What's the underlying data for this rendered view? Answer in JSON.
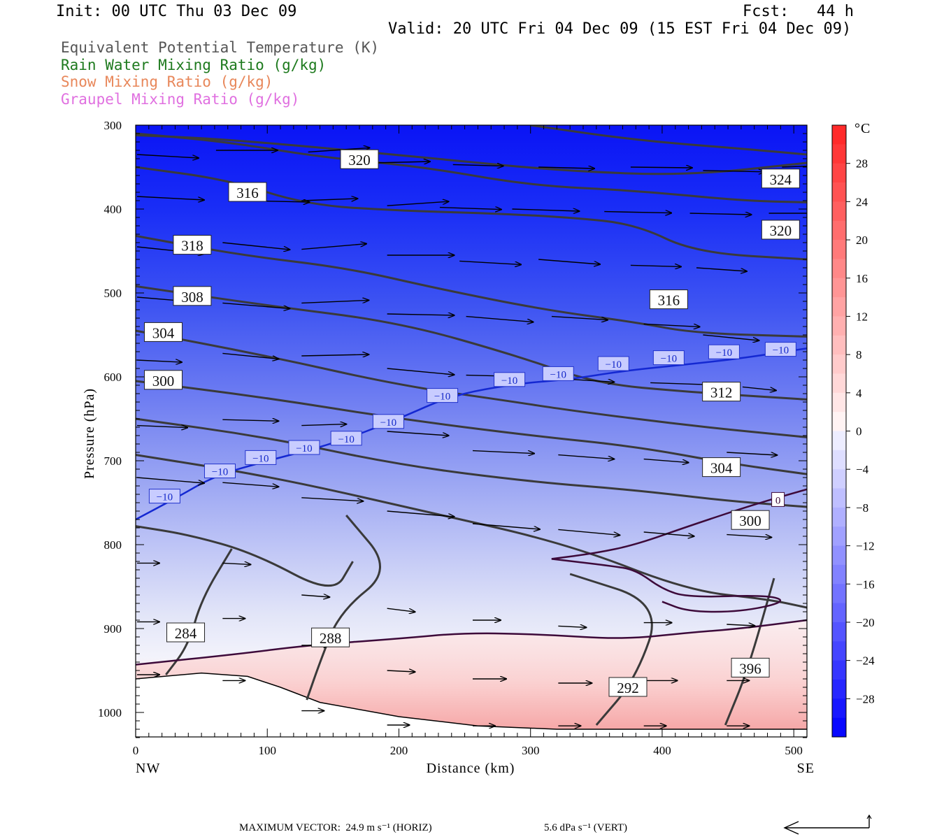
{
  "header": {
    "init": "Init: 00 UTC Thu 03 Dec 09",
    "fcst": "Fcst:   44 h",
    "valid": "Valid: 20 UTC Fri 04 Dec 09 (15 EST Fri 04 Dec 09)"
  },
  "legend": [
    {
      "text": "Equivalent Potential Temperature (K)",
      "color": "#555555"
    },
    {
      "text": "Rain Water Mixing Ratio (g/kg)",
      "color": "#1e7a1e"
    },
    {
      "text": "Snow Mixing Ratio (g/kg)",
      "color": "#e8875a"
    },
    {
      "text": "Graupel Mixing Ratio (g/kg)",
      "color": "#e070e0"
    }
  ],
  "chart_data": {
    "type": "cross-section",
    "xlabel": "Distance (km)",
    "ylabel": "Pressure (hPa)",
    "x_range": [
      0,
      510
    ],
    "y_range": [
      1030,
      300
    ],
    "x_ticks": [
      "0",
      "100",
      "200",
      "300",
      "400",
      "500"
    ],
    "y_ticks": [
      "300",
      "400",
      "500",
      "600",
      "700",
      "800",
      "900",
      "1000"
    ],
    "x_left_label": "NW",
    "x_right_label": "SE",
    "colorbar": {
      "unit": "°C",
      "labels": [
        "28",
        "24",
        "20",
        "16",
        "12",
        "8",
        "4",
        "0",
        "−4",
        "−8",
        "−12",
        "−16",
        "−20",
        "−24",
        "−28"
      ],
      "min": -32,
      "max": 32
    },
    "theta_e_contours": [
      {
        "label": "284",
        "points": [
          [
            23,
            955
          ],
          [
            40,
            920
          ],
          [
            50,
            865
          ],
          [
            73,
            805
          ]
        ]
      },
      {
        "label": "288",
        "points": [
          [
            130,
            985
          ],
          [
            140,
            940
          ],
          [
            155,
            880
          ],
          [
            195,
            830
          ],
          [
            160,
            765
          ]
        ]
      },
      {
        "label": "292",
        "points": [
          [
            350,
            1015
          ],
          [
            380,
            960
          ],
          [
            400,
            870
          ],
          [
            330,
            835
          ]
        ]
      },
      {
        "label": "396",
        "points": [
          [
            448,
            1015
          ],
          [
            465,
            950
          ],
          [
            485,
            840
          ]
        ]
      },
      {
        "label": "300",
        "points": [
          [
            0,
            778
          ],
          [
            40,
            788
          ],
          [
            90,
            810
          ],
          [
            150,
            860
          ],
          [
            165,
            820
          ]
        ]
      },
      {
        "label": "304",
        "points": [
          [
            0,
            693
          ],
          [
            100,
            718
          ],
          [
            220,
            760
          ],
          [
            330,
            800
          ],
          [
            420,
            855
          ],
          [
            480,
            865
          ],
          [
            510,
            875
          ]
        ]
      },
      {
        "label": "300",
        "points": [
          [
            0,
            650
          ],
          [
            100,
            672
          ],
          [
            200,
            705
          ],
          [
            300,
            725
          ],
          [
            380,
            735
          ],
          [
            450,
            748
          ],
          [
            510,
            755
          ]
        ]
      },
      {
        "label": "304",
        "points": [
          [
            0,
            605
          ],
          [
            100,
            625
          ],
          [
            200,
            650
          ],
          [
            300,
            670
          ],
          [
            380,
            683
          ],
          [
            450,
            703
          ],
          [
            510,
            716
          ]
        ]
      },
      {
        "label": "312",
        "points": [
          [
            0,
            545
          ],
          [
            100,
            575
          ],
          [
            200,
            610
          ],
          [
            280,
            628
          ],
          [
            330,
            640
          ],
          [
            420,
            658
          ],
          [
            510,
            672
          ]
        ]
      },
      {
        "label": "308",
        "points": [
          [
            0,
            492
          ],
          [
            100,
            515
          ],
          [
            200,
            535
          ],
          [
            290,
            575
          ],
          [
            350,
            608
          ],
          [
            420,
            618
          ],
          [
            510,
            627
          ]
        ]
      },
      {
        "label": "316",
        "points": [
          [
            0,
            432
          ],
          [
            80,
            455
          ],
          [
            160,
            470
          ],
          [
            230,
            495
          ],
          [
            310,
            520
          ],
          [
            380,
            535
          ],
          [
            425,
            548
          ],
          [
            510,
            552
          ]
        ]
      },
      {
        "label": "318",
        "points": [
          [
            0,
            350
          ],
          [
            70,
            365
          ],
          [
            130,
            395
          ],
          [
            200,
            402
          ],
          [
            270,
            405
          ],
          [
            330,
            410
          ],
          [
            380,
            418
          ],
          [
            425,
            452
          ],
          [
            510,
            460
          ]
        ]
      },
      {
        "label": "316",
        "points": [
          [
            0,
            310
          ],
          [
            70,
            320
          ],
          [
            140,
            338
          ],
          [
            220,
            350
          ],
          [
            300,
            372
          ],
          [
            380,
            378
          ],
          [
            460,
            390
          ],
          [
            510,
            392
          ]
        ]
      },
      {
        "label": "320",
        "points": [
          [
            0,
            312
          ],
          [
            60,
            316
          ],
          [
            150,
            328
          ],
          [
            240,
            342
          ],
          [
            330,
            355
          ],
          [
            420,
            360
          ],
          [
            510,
            345
          ]
        ]
      },
      {
        "label": "324",
        "points": [
          [
            300,
            300
          ],
          [
            380,
            318
          ],
          [
            460,
            328
          ],
          [
            510,
            335
          ]
        ]
      }
    ],
    "contour_labels": [
      {
        "text": "320",
        "x": 170,
        "p": 341
      },
      {
        "text": "324",
        "x": 490,
        "p": 364
      },
      {
        "text": "316",
        "x": 85,
        "p": 380
      },
      {
        "text": "320",
        "x": 490,
        "p": 425
      },
      {
        "text": "318",
        "x": 43,
        "p": 443
      },
      {
        "text": "308",
        "x": 43,
        "p": 504
      },
      {
        "text": "316",
        "x": 405,
        "p": 508
      },
      {
        "text": "304",
        "x": 21,
        "p": 547
      },
      {
        "text": "300",
        "x": 21,
        "p": 604
      },
      {
        "text": "312",
        "x": 445,
        "p": 618
      },
      {
        "text": "304",
        "x": 445,
        "p": 708
      },
      {
        "text": "300",
        "x": 467,
        "p": 771
      },
      {
        "text": "284",
        "x": 38,
        "p": 905
      },
      {
        "text": "288",
        "x": 148,
        "p": 911
      },
      {
        "text": "292",
        "x": 374,
        "p": 970
      },
      {
        "text": "396",
        "x": 467,
        "p": 947
      }
    ],
    "isotherm_minus10": {
      "label": "−10",
      "points": [
        [
          0,
          770
        ],
        [
          30,
          745
        ],
        [
          60,
          718
        ],
        [
          100,
          700
        ],
        [
          150,
          680
        ],
        [
          200,
          650
        ],
        [
          240,
          622
        ],
        [
          290,
          608
        ],
        [
          330,
          603
        ],
        [
          370,
          593
        ],
        [
          420,
          585
        ],
        [
          460,
          578
        ],
        [
          510,
          566
        ]
      ],
      "label_positions": [
        [
          22,
          743
        ],
        [
          64,
          713
        ],
        [
          95,
          697
        ],
        [
          128,
          685
        ],
        [
          160,
          674
        ],
        [
          192,
          654
        ],
        [
          233,
          623
        ],
        [
          284,
          604
        ],
        [
          321,
          597
        ],
        [
          363,
          585
        ],
        [
          405,
          578
        ],
        [
          447,
          571
        ],
        [
          490,
          568
        ]
      ]
    },
    "zero_isotherm": {
      "label": "0",
      "points": [
        [
          0,
          943
        ],
        [
          80,
          930
        ],
        [
          130,
          920
        ],
        [
          200,
          912
        ],
        [
          250,
          905
        ],
        [
          310,
          907
        ],
        [
          370,
          913
        ],
        [
          420,
          905
        ],
        [
          460,
          900
        ],
        [
          510,
          890
        ]
      ],
      "lens": [
        [
          316,
          817
        ],
        [
          350,
          810
        ],
        [
          380,
          800
        ],
        [
          420,
          778
        ],
        [
          470,
          752
        ],
        [
          510,
          734
        ]
      ],
      "lens_lower": [
        [
          316,
          817
        ],
        [
          360,
          825
        ],
        [
          380,
          830
        ],
        [
          400,
          853
        ],
        [
          420,
          863
        ],
        [
          480,
          860
        ],
        [
          495,
          868
        ],
        [
          460,
          880
        ],
        [
          420,
          880
        ],
        [
          400,
          868
        ]
      ],
      "label_pos": [
        488,
        747
      ]
    },
    "terrain": [
      [
        0,
        960
      ],
      [
        50,
        953
      ],
      [
        85,
        957
      ],
      [
        110,
        970
      ],
      [
        140,
        988
      ],
      [
        200,
        1005
      ],
      [
        260,
        1016
      ],
      [
        320,
        1020
      ],
      [
        400,
        1020
      ],
      [
        510,
        1020
      ]
    ],
    "wind_vectors": [
      [
        0,
        335,
        55,
        5
      ],
      [
        60,
        330,
        55,
        0
      ],
      [
        130,
        332,
        55,
        -6
      ],
      [
        180,
        345,
        50,
        -2
      ],
      [
        240,
        347,
        45,
        2
      ],
      [
        305,
        350,
        50,
        2
      ],
      [
        375,
        350,
        55,
        1
      ],
      [
        430,
        354,
        55,
        2
      ],
      [
        490,
        350,
        50,
        -3
      ],
      [
        0,
        385,
        60,
        5
      ],
      [
        80,
        390,
        60,
        2
      ],
      [
        125,
        390,
        50,
        -3
      ],
      [
        190,
        396,
        55,
        -6
      ],
      [
        230,
        398,
        55,
        3
      ],
      [
        285,
        400,
        60,
        3
      ],
      [
        355,
        403,
        60,
        2
      ],
      [
        420,
        405,
        55,
        2
      ],
      [
        480,
        405,
        50,
        0
      ],
      [
        0,
        445,
        60,
        10
      ],
      [
        65,
        440,
        60,
        10
      ],
      [
        125,
        448,
        58,
        -8
      ],
      [
        190,
        455,
        60,
        0
      ],
      [
        245,
        462,
        55,
        5
      ],
      [
        305,
        460,
        55,
        7
      ],
      [
        375,
        467,
        45,
        2
      ],
      [
        425,
        470,
        45,
        5
      ],
      [
        0,
        505,
        60,
        8
      ],
      [
        65,
        512,
        60,
        8
      ],
      [
        125,
        512,
        60,
        -4
      ],
      [
        190,
        525,
        60,
        2
      ],
      [
        250,
        528,
        60,
        8
      ],
      [
        315,
        528,
        50,
        5
      ],
      [
        385,
        537,
        50,
        4
      ],
      [
        430,
        550,
        50,
        8
      ],
      [
        0,
        580,
        40,
        3
      ],
      [
        65,
        572,
        50,
        8
      ],
      [
        125,
        575,
        60,
        -2
      ],
      [
        190,
        590,
        60,
        9
      ],
      [
        250,
        598,
        50,
        2
      ],
      [
        320,
        602,
        50,
        5
      ],
      [
        390,
        607,
        55,
        3
      ],
      [
        460,
        612,
        30,
        5
      ],
      [
        0,
        658,
        45,
        3
      ],
      [
        65,
        651,
        50,
        2
      ],
      [
        125,
        658,
        40,
        -2
      ],
      [
        190,
        665,
        55,
        6
      ],
      [
        255,
        688,
        55,
        4
      ],
      [
        320,
        693,
        50,
        6
      ],
      [
        385,
        698,
        40,
        5
      ],
      [
        448,
        690,
        45,
        4
      ],
      [
        0,
        720,
        60,
        8
      ],
      [
        65,
        726,
        50,
        6
      ],
      [
        125,
        744,
        55,
        5
      ],
      [
        190,
        760,
        60,
        8
      ],
      [
        255,
        775,
        60,
        8
      ],
      [
        320,
        782,
        55,
        8
      ],
      [
        385,
        785,
        45,
        6
      ],
      [
        448,
        788,
        40,
        4
      ],
      [
        0,
        822,
        20,
        0
      ],
      [
        65,
        822,
        25,
        2
      ],
      [
        125,
        860,
        25,
        3
      ],
      [
        190,
        876,
        25,
        5
      ],
      [
        255,
        890,
        25,
        0
      ],
      [
        320,
        897,
        25,
        2
      ],
      [
        385,
        893,
        25,
        0
      ],
      [
        448,
        895,
        25,
        2
      ],
      [
        0,
        892,
        20,
        0
      ],
      [
        65,
        888,
        20,
        0
      ],
      [
        125,
        920,
        25,
        0
      ],
      [
        190,
        950,
        25,
        2
      ],
      [
        255,
        960,
        30,
        0
      ],
      [
        320,
        965,
        30,
        0
      ],
      [
        385,
        962,
        30,
        0
      ],
      [
        448,
        962,
        20,
        0
      ],
      [
        0,
        955,
        20,
        0
      ],
      [
        65,
        962,
        20,
        0
      ],
      [
        125,
        998,
        20,
        0
      ],
      [
        190,
        1015,
        20,
        0
      ],
      [
        255,
        1016,
        20,
        0
      ],
      [
        320,
        1016,
        20,
        0
      ],
      [
        385,
        1016,
        20,
        0
      ],
      [
        448,
        1016,
        20,
        0
      ]
    ]
  },
  "footer": {
    "max_vector_horiz": "MAXIMUM VECTOR:  24.9 m s⁻¹ (HORIZ)",
    "max_vector_vert": "5.6 dPa s⁻¹ (VERT)"
  }
}
